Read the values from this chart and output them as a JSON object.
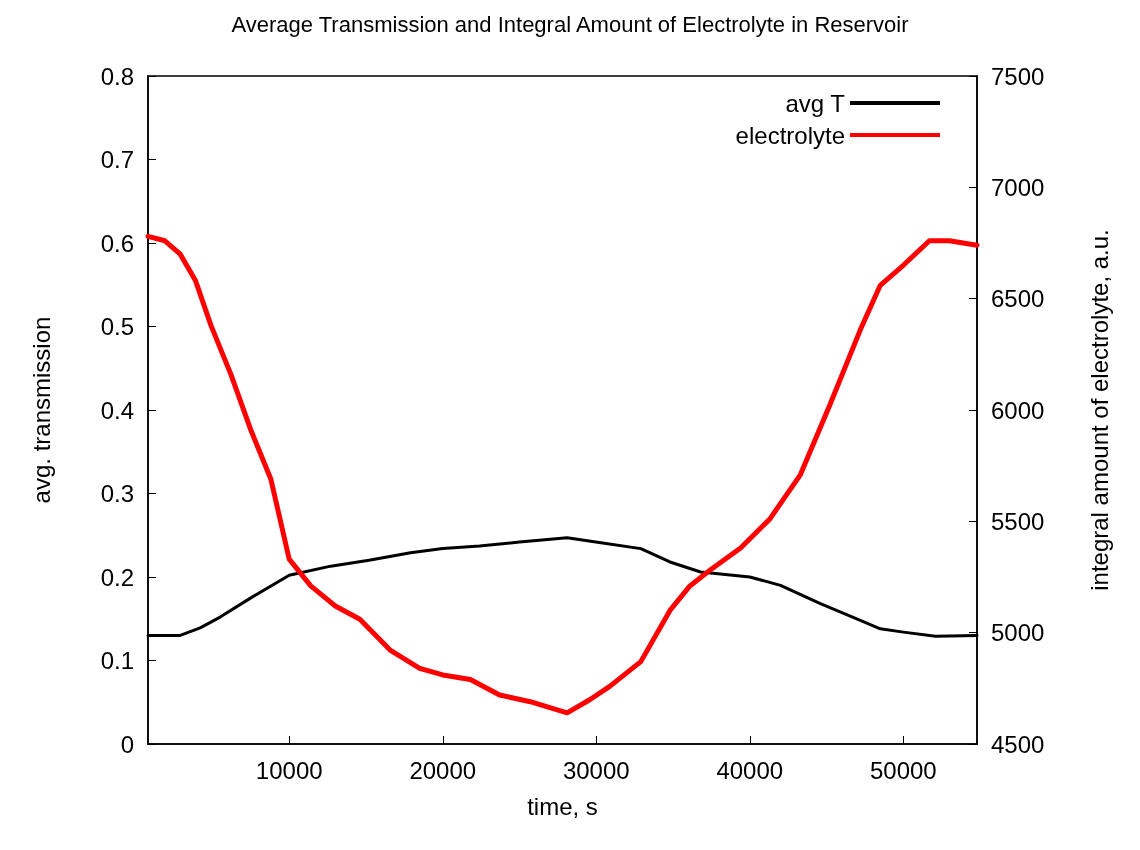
{
  "chart_data": {
    "type": "line",
    "title": "Average Transmission and Integral Amount of Electrolyte in Reservoir",
    "xlabel": "time, s",
    "ylabel": "avg. transmission",
    "y2label": "integral amount of electrolyte, a.u.",
    "xlim": [
      800,
      54800
    ],
    "xticks": [
      10000,
      20000,
      30000,
      40000,
      50000
    ],
    "ylim": [
      0,
      0.8
    ],
    "yticks": [
      0,
      0.1,
      0.2,
      0.3,
      0.4,
      0.5,
      0.6,
      0.7,
      0.8
    ],
    "y2lim": [
      4500,
      7500
    ],
    "y2ticks": [
      4500,
      5000,
      5500,
      6000,
      6500,
      7000,
      7500
    ],
    "grid": false,
    "legend": "top right",
    "marker": "none",
    "line_style": "solid",
    "series": [
      {
        "name": "avg T",
        "color": "#000000",
        "x": [
          800,
          2900,
          4200,
          5500,
          7500,
          10000,
          12700,
          15200,
          17900,
          20000,
          22400,
          25000,
          28100,
          30300,
          32900,
          34800,
          36800,
          40000,
          42000,
          44600,
          47200,
          48500,
          50000,
          52100,
          54800
        ],
        "values": [
          0.13,
          0.13,
          0.139,
          0.152,
          0.175,
          0.202,
          0.213,
          0.22,
          0.229,
          0.234,
          0.237,
          0.242,
          0.247,
          0.241,
          0.234,
          0.218,
          0.206,
          0.2,
          0.19,
          0.168,
          0.148,
          0.138,
          0.134,
          0.129,
          0.13
        ]
      },
      {
        "name": "electrolyte",
        "color": "#ff0000",
        "axis": "y2",
        "x": [
          800,
          1900,
          2900,
          3900,
          4900,
          6200,
          7500,
          8800,
          10000,
          11400,
          13000,
          14600,
          16600,
          18500,
          20000,
          21800,
          23700,
          25700,
          28100,
          29600,
          30900,
          32900,
          34800,
          36100,
          37400,
          39400,
          41300,
          43300,
          45200,
          47200,
          48500,
          50000,
          51700,
          53000,
          54800
        ],
        "values": [
          6780,
          6760,
          6700,
          6580,
          6380,
          6160,
          5910,
          5690,
          5330,
          5210,
          5120,
          5060,
          4920,
          4840,
          4810,
          4790,
          4720,
          4690,
          4640,
          4700,
          4760,
          4870,
          5100,
          5210,
          5280,
          5380,
          5510,
          5710,
          6020,
          6360,
          6560,
          6650,
          6760,
          6760,
          6740
        ]
      }
    ]
  }
}
